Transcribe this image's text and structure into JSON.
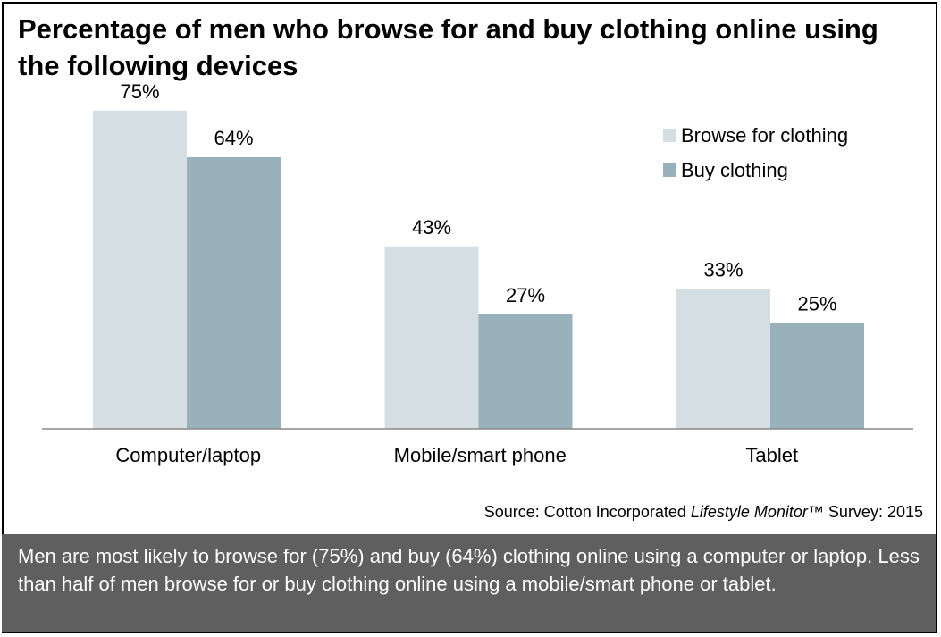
{
  "title": "Percentage of men who browse for and buy clothing online using the following devices",
  "source": {
    "prefix": "Source: Cotton Incorporated ",
    "italic": "Lifestyle Monitor",
    "suffix": "™ Survey: 2015"
  },
  "note": "Men are most likely to browse for (75%) and buy (64%) clothing online using a computer or laptop.  Less than half of men browse for or buy clothing online using a mobile/smart phone or tablet.",
  "chart_data": {
    "type": "bar",
    "categories": [
      "Computer/laptop",
      "Mobile/smart phone",
      "Tablet"
    ],
    "series": [
      {
        "name": "Browse for clothing",
        "values": [
          75,
          43,
          33
        ],
        "color": "#d5dfe3"
      },
      {
        "name": "Buy clothing",
        "values": [
          64,
          27,
          25
        ],
        "color": "#98b1bb"
      }
    ],
    "value_suffix": "%",
    "ylim": [
      0,
      80
    ],
    "grid": false,
    "legend": "top-right"
  }
}
